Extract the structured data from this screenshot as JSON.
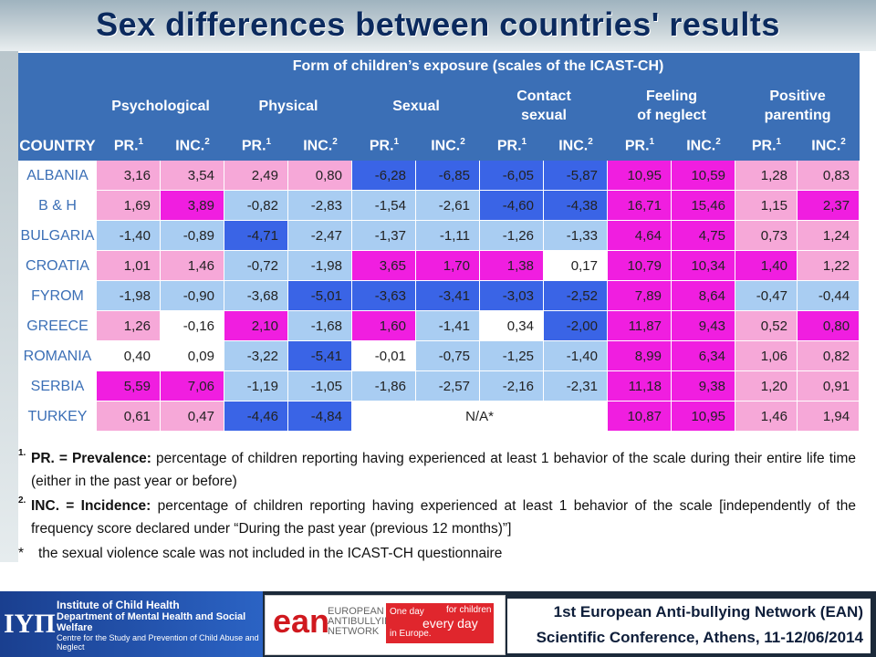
{
  "title": "Sex differences between countries' results",
  "table": {
    "header_bold": "Form of children’s exposure",
    "header_rest": " (scales of the ICAST-CH)",
    "country_label": "COUNTRY",
    "scales": [
      {
        "line1": "Psychological",
        "line2": ""
      },
      {
        "line1": "Physical",
        "line2": ""
      },
      {
        "line1": "Sexual",
        "line2": ""
      },
      {
        "line1": "Contact",
        "line2": "sexual"
      },
      {
        "line1": "Feeling",
        "line2": "of neglect"
      },
      {
        "line1": "Positive",
        "line2": "parenting"
      }
    ],
    "sub_pr": "PR.",
    "sub_inc": "INC.",
    "sup_pr": "1",
    "sup_inc": "2",
    "rows": [
      {
        "country": "ALBANIA",
        "values": [
          "3,16",
          "3,54",
          "2,49",
          "0,80",
          "-6,28",
          "-6,85",
          "-6,05",
          "-5,87",
          "10,95",
          "10,59",
          "1,28",
          "0,83"
        ],
        "colors": [
          "lpink",
          "lpink",
          "lpink",
          "lpink",
          "blue",
          "blue",
          "blue",
          "blue",
          "mag",
          "mag",
          "lpink",
          "lpink"
        ]
      },
      {
        "country": "B & H",
        "values": [
          "1,69",
          "3,89",
          "-0,82",
          "-2,83",
          "-1,54",
          "-2,61",
          "-4,60",
          "-4,38",
          "16,71",
          "15,46",
          "1,15",
          "2,37"
        ],
        "colors": [
          "lpink",
          "mag",
          "lblue",
          "lblue",
          "lblue",
          "lblue",
          "blue",
          "blue",
          "mag",
          "mag",
          "lpink",
          "mag"
        ]
      },
      {
        "country": "BULGARIA",
        "values": [
          "-1,40",
          "-0,89",
          "-4,71",
          "-2,47",
          "-1,37",
          "-1,11",
          "-1,26",
          "-1,33",
          "4,64",
          "4,75",
          "0,73",
          "1,24"
        ],
        "colors": [
          "lblue",
          "lblue",
          "blue",
          "lblue",
          "lblue",
          "lblue",
          "lblue",
          "lblue",
          "mag",
          "mag",
          "lpink",
          "lpink"
        ]
      },
      {
        "country": "CROATIA",
        "values": [
          "1,01",
          "1,46",
          "-0,72",
          "-1,98",
          "3,65",
          "1,70",
          "1,38",
          "0,17",
          "10,79",
          "10,34",
          "1,40",
          "1,22"
        ],
        "colors": [
          "lpink",
          "lpink",
          "lblue",
          "lblue",
          "mag",
          "mag",
          "mag",
          "white",
          "mag",
          "mag",
          "mag",
          "lpink"
        ]
      },
      {
        "country": "FYROM",
        "values": [
          "-1,98",
          "-0,90",
          "-3,68",
          "-5,01",
          "-3,63",
          "-3,41",
          "-3,03",
          "-2,52",
          "7,89",
          "8,64",
          "-0,47",
          "-0,44"
        ],
        "colors": [
          "lblue",
          "lblue",
          "lblue",
          "blue",
          "blue",
          "blue",
          "blue",
          "blue",
          "mag",
          "mag",
          "lblue",
          "lblue"
        ]
      },
      {
        "country": "GREECE",
        "values": [
          "1,26",
          "-0,16",
          "2,10",
          "-1,68",
          "1,60",
          "-1,41",
          "0,34",
          "-2,00",
          "11,87",
          "9,43",
          "0,52",
          "0,80"
        ],
        "colors": [
          "lpink",
          "white",
          "mag",
          "lblue",
          "mag",
          "lblue",
          "white",
          "blue",
          "mag",
          "mag",
          "lpink",
          "mag"
        ]
      },
      {
        "country": "ROMANIA",
        "values": [
          "0,40",
          "0,09",
          "-3,22",
          "-5,41",
          "-0,01",
          "-0,75",
          "-1,25",
          "-1,40",
          "8,99",
          "6,34",
          "1,06",
          "0,82"
        ],
        "colors": [
          "white",
          "white",
          "lblue",
          "blue",
          "white",
          "lblue",
          "lblue",
          "lblue",
          "mag",
          "mag",
          "lpink",
          "lpink"
        ]
      },
      {
        "country": "SERBIA",
        "values": [
          "5,59",
          "7,06",
          "-1,19",
          "-1,05",
          "-1,86",
          "-2,57",
          "-2,16",
          "-2,31",
          "11,18",
          "9,38",
          "1,20",
          "0,91"
        ],
        "colors": [
          "mag",
          "mag",
          "lblue",
          "lblue",
          "lblue",
          "lblue",
          "lblue",
          "lblue",
          "mag",
          "mag",
          "lpink",
          "lpink"
        ]
      },
      {
        "country": "TURKEY",
        "values": [
          "0,61",
          "0,47",
          "-4,46",
          "-4,84",
          "N/A*",
          "",
          "",
          "",
          "10,87",
          "10,95",
          "1,46",
          "1,94"
        ],
        "colors": [
          "lpink",
          "lpink",
          "blue",
          "blue",
          "na",
          "na",
          "na",
          "na",
          "mag",
          "mag",
          "lpink",
          "lpink"
        ]
      }
    ],
    "na_text": "N/A*"
  },
  "notes": {
    "n1_mark": "1.",
    "n1_term": "PR. = Prevalence:",
    "n1_text": " percentage of children reporting having experienced at least 1 behavior of the scale during their entire life time (either in the past year or before)",
    "n2_mark": "2.",
    "n2_term": "INC. = Incidence:",
    "n2_text": " percentage of children reporting having experienced at least 1 behavior of the scale [independently of the frequency score declared under “During the past year (previous 12 months)”]",
    "n3_mark": "*",
    "n3_text": "the sexual violence scale was not included in the ICAST-CH questionnaire"
  },
  "footer": {
    "ich_logo": "IYΠ",
    "ich_line1": "Institute of Child Health",
    "ich_line2": "Department of Mental Health and Social Welfare",
    "ich_line3": "Centre for the Study and Prevention of Child Abuse and Neglect",
    "ean_logo": "ean",
    "ean_name": "EUROPEAN ANTIBULLYING NETWORK",
    "ean_tag1": "One day",
    "ean_tag2": "every day",
    "ean_tag3": "for children",
    "ean_tag4": "in Europe.",
    "conf_line1": "1st European Anti-bullying Network (EAN)",
    "conf_line2": "Scientific Conference, Athens, 11-12/06/2014"
  },
  "colors": {
    "header_blue": "#3b6fb6",
    "light_pink": "#f6a8d8",
    "magenta": "#f01ee0",
    "light_blue": "#a9cdf2",
    "blue": "#3a64e6",
    "title_navy": "#0b2a5e"
  }
}
